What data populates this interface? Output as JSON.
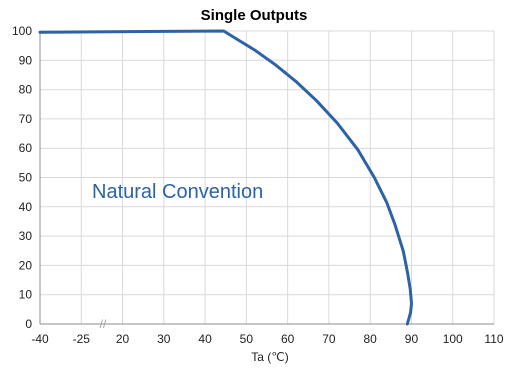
{
  "chart_data": {
    "type": "line",
    "title": "Single Outputs",
    "xlabel": "Ta (℃)",
    "ylabel": "",
    "x_ticks": [
      -40,
      -25,
      20,
      30,
      40,
      50,
      60,
      70,
      80,
      90,
      100,
      110
    ],
    "y_ticks": [
      0,
      10,
      20,
      30,
      40,
      50,
      60,
      70,
      80,
      90,
      100
    ],
    "ylim": [
      0,
      100
    ],
    "x_break_mark": "//",
    "grid": true,
    "annotations": [
      {
        "text": "Natural Convention"
      }
    ],
    "series": [
      {
        "x": [
          -40,
          44.5,
          47,
          52,
          57,
          62,
          67,
          72,
          77,
          81,
          84,
          86,
          88,
          89,
          89.7,
          90,
          89.8,
          89.3,
          89
        ],
        "y": [
          99.6,
          100,
          97.8,
          93.5,
          88.5,
          82.8,
          76.2,
          68.6,
          59.5,
          50,
          41.5,
          34,
          25,
          18,
          12,
          7,
          4,
          1.5,
          0
        ]
      }
    ]
  },
  "colors": {
    "line": "#2c62a6",
    "annotation": "#2c62a6",
    "grid": "#d9d9d9",
    "axis": "#8c8c8c"
  }
}
